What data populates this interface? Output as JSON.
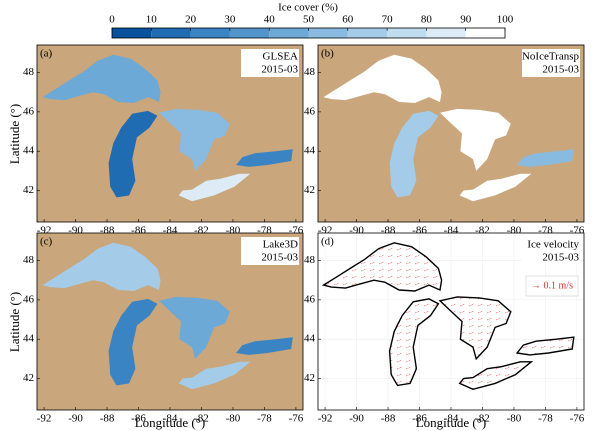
{
  "colorbar": {
    "label": "Ice cover (%)",
    "ticks": [
      0,
      10,
      20,
      30,
      40,
      50,
      60,
      70,
      80,
      90,
      100
    ],
    "colors": [
      "#08519c",
      "#1f6cb3",
      "#3a84c4",
      "#5295cc",
      "#6ca9d7",
      "#88bbdf",
      "#a4cce8",
      "#c0dcef",
      "#dcebf6",
      "#ffffff"
    ]
  },
  "axes": {
    "xlabel": "Longitude (°)",
    "ylabel": "Latitude (°)",
    "xlim": [
      -92.45,
      -75.55
    ],
    "ylim": [
      40.4,
      49.4
    ],
    "xticks": [
      -92,
      -90,
      -88,
      -86,
      -84,
      -82,
      -80,
      -78,
      -76
    ],
    "yticks": [
      42,
      44,
      46,
      48
    ]
  },
  "land_color": "#c9a67b",
  "panels": [
    {
      "tag": "(a)",
      "title": "GLSEA",
      "date": "2015-03"
    },
    {
      "tag": "(b)",
      "title": "NoIceTransp",
      "date": "2015-03"
    },
    {
      "tag": "(c)",
      "title": "Lake3D",
      "date": "2015-03"
    },
    {
      "tag": "(d)",
      "title": "Ice velocity",
      "date": "2015-03"
    }
  ],
  "velocity_legend": "→ 0.1 m/s"
}
